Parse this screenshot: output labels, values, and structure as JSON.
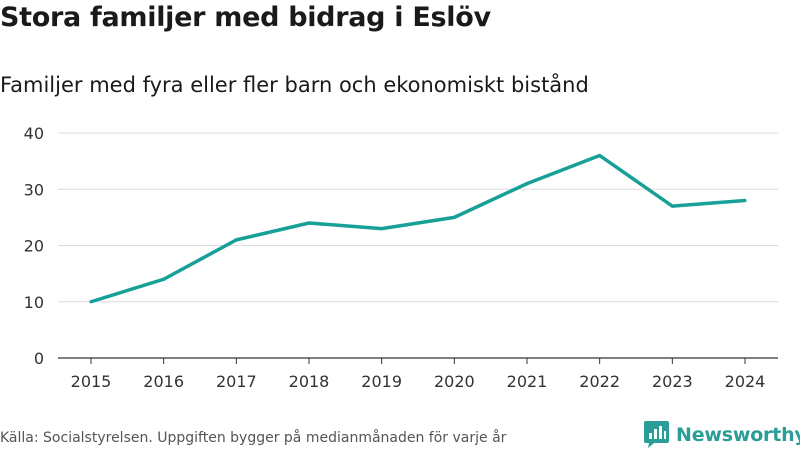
{
  "header": {
    "title": "Stora familjer med bidrag i Eslöv",
    "subtitle": "Familjer med fyra eller fler barn och ekonomiskt bistånd"
  },
  "footer": {
    "source": "Källa: Socialstyrelsen. Uppgiften bygger på medianmånaden för varje år"
  },
  "brand": {
    "name": "Newsworthy",
    "icon": "newsworthy-logo-icon",
    "color": "#2a9d96"
  },
  "chart_data": {
    "type": "line",
    "title": "Stora familjer med bidrag i Eslöv",
    "subtitle": "Familjer med fyra eller fler barn och ekonomiskt bistånd",
    "xlabel": "",
    "ylabel": "",
    "categories": [
      "2015",
      "2016",
      "2017",
      "2018",
      "2019",
      "2020",
      "2021",
      "2022",
      "2023",
      "2024"
    ],
    "series": [
      {
        "name": "Familjer",
        "values": [
          10,
          14,
          21,
          24,
          23,
          25,
          31,
          36,
          27,
          28
        ],
        "color": "#17a097"
      }
    ],
    "ylim": [
      0,
      40
    ],
    "yticks": [
      0,
      10,
      20,
      30,
      40
    ],
    "grid": true,
    "legend": "none"
  }
}
